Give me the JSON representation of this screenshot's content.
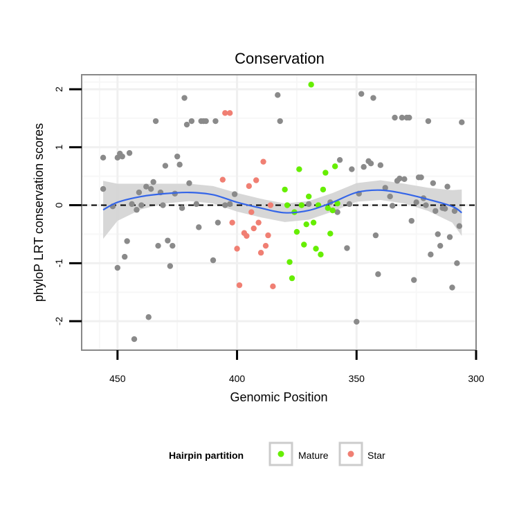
{
  "chart_data": {
    "type": "scatter",
    "title": "Conservation",
    "xlabel": "Genomic Position",
    "ylabel": "phyloP LRT conservation scores",
    "xlim": [
      465,
      300
    ],
    "x_reversed": true,
    "ylim": [
      -2.5,
      2.25
    ],
    "x_ticks": [
      450,
      400,
      350,
      300
    ],
    "y_ticks": [
      2,
      1,
      0,
      -1,
      -2
    ],
    "x_tick_labels": [
      "450",
      "400",
      "350",
      "300"
    ],
    "y_tick_labels": [
      "2",
      "1",
      "0",
      "-1",
      "-2"
    ],
    "grid": true,
    "reference_line": {
      "y": 0,
      "style": "dashed",
      "color": "#000000"
    },
    "legend": {
      "title": "Hairpin partition",
      "position": "bottom",
      "entries": [
        {
          "label": "Mature",
          "color": "#66ee00"
        },
        {
          "label": "Star",
          "color": "#f07f73"
        }
      ]
    },
    "colors": {
      "other": "#8a8a8a",
      "Mature": "#66ee00",
      "Star": "#f07f73",
      "smooth": "#3465e8",
      "band": "#d3d3d3"
    },
    "series": [
      {
        "group": "other",
        "points": [
          [
            456,
            0.82
          ],
          [
            456,
            0.28
          ],
          [
            452,
            -0.02
          ],
          [
            450,
            0.82
          ],
          [
            450,
            -1.08
          ],
          [
            449,
            0.89
          ],
          [
            448,
            0.84
          ],
          [
            447,
            -0.89
          ],
          [
            446,
            -0.62
          ],
          [
            445,
            0.9
          ],
          [
            444,
            0.02
          ],
          [
            443,
            -2.31
          ],
          [
            442,
            -0.08
          ],
          [
            441,
            0.22
          ],
          [
            440,
            0.0
          ],
          [
            438,
            0.32
          ],
          [
            437,
            -1.93
          ],
          [
            436,
            0.28
          ],
          [
            435,
            0.4
          ],
          [
            434,
            1.45
          ],
          [
            433,
            -0.7
          ],
          [
            432,
            0.22
          ],
          [
            431,
            0.0
          ],
          [
            430,
            0.68
          ],
          [
            429,
            -0.61
          ],
          [
            428,
            -1.05
          ],
          [
            427,
            -0.7
          ],
          [
            426,
            0.2
          ],
          [
            425,
            0.84
          ],
          [
            424,
            0.7
          ],
          [
            423,
            -0.05
          ],
          [
            422,
            1.85
          ],
          [
            421,
            1.39
          ],
          [
            420,
            0.38
          ],
          [
            419,
            1.45
          ],
          [
            417,
            0.02
          ],
          [
            416,
            -0.38
          ],
          [
            415,
            1.45
          ],
          [
            414,
            1.45
          ],
          [
            413,
            1.45
          ],
          [
            410,
            -0.95
          ],
          [
            409,
            1.45
          ],
          [
            408,
            -0.3
          ],
          [
            405,
            0.0
          ],
          [
            403,
            0.02
          ],
          [
            401,
            0.19
          ],
          [
            383,
            1.9
          ],
          [
            382,
            1.45
          ],
          [
            370,
            0.02
          ],
          [
            361,
            0.05
          ],
          [
            358,
            -0.12
          ],
          [
            357,
            0.78
          ],
          [
            354,
            -0.74
          ],
          [
            353,
            0.02
          ],
          [
            352,
            0.62
          ],
          [
            350,
            -2.01
          ],
          [
            349,
            0.2
          ],
          [
            348,
            1.92
          ],
          [
            347,
            0.66
          ],
          [
            345,
            0.76
          ],
          [
            344,
            0.72
          ],
          [
            343,
            1.85
          ],
          [
            342,
            -0.52
          ],
          [
            341,
            -1.19
          ],
          [
            340,
            0.69
          ],
          [
            338,
            0.3
          ],
          [
            336,
            0.15
          ],
          [
            335,
            -0.01
          ],
          [
            334,
            1.51
          ],
          [
            333,
            0.42
          ],
          [
            332,
            0.46
          ],
          [
            331,
            1.51
          ],
          [
            330,
            0.45
          ],
          [
            329,
            1.51
          ],
          [
            328,
            1.51
          ],
          [
            327,
            -0.27
          ],
          [
            326,
            -1.29
          ],
          [
            325,
            0.05
          ],
          [
            324,
            0.48
          ],
          [
            323,
            0.48
          ],
          [
            322,
            0.12
          ],
          [
            321,
            0.0
          ],
          [
            320,
            1.45
          ],
          [
            319,
            -0.85
          ],
          [
            318,
            0.38
          ],
          [
            317,
            -0.1
          ],
          [
            316,
            -0.5
          ],
          [
            315,
            -0.7
          ],
          [
            314,
            -0.05
          ],
          [
            313,
            -0.06
          ],
          [
            312,
            0.32
          ],
          [
            311,
            -0.55
          ],
          [
            310,
            -1.42
          ],
          [
            309,
            -0.1
          ],
          [
            308,
            -1.0
          ],
          [
            307,
            -0.36
          ],
          [
            306,
            1.43
          ]
        ]
      },
      {
        "group": "Star",
        "points": [
          [
            406,
            0.44
          ],
          [
            405,
            1.59
          ],
          [
            403,
            1.59
          ],
          [
            402,
            -0.3
          ],
          [
            400,
            -0.75
          ],
          [
            399,
            -1.38
          ],
          [
            397,
            -0.48
          ],
          [
            396,
            -0.53
          ],
          [
            395,
            0.33
          ],
          [
            394,
            -0.12
          ],
          [
            393,
            -0.4
          ],
          [
            392,
            0.43
          ],
          [
            391,
            -0.3
          ],
          [
            390,
            -0.82
          ],
          [
            389,
            0.75
          ],
          [
            388,
            -0.7
          ],
          [
            387,
            -0.52
          ],
          [
            386,
            0.0
          ],
          [
            385,
            -1.4
          ]
        ]
      },
      {
        "group": "Mature",
        "points": [
          [
            380,
            0.27
          ],
          [
            379,
            0.0
          ],
          [
            378,
            -0.98
          ],
          [
            377,
            -1.26
          ],
          [
            376,
            -0.12
          ],
          [
            375,
            -0.46
          ],
          [
            374,
            0.62
          ],
          [
            373,
            0.0
          ],
          [
            372,
            -0.68
          ],
          [
            371,
            -0.33
          ],
          [
            370,
            0.15
          ],
          [
            369,
            2.08
          ],
          [
            368,
            -0.3
          ],
          [
            367,
            -0.75
          ],
          [
            366,
            0.0
          ],
          [
            365,
            -0.85
          ],
          [
            364,
            0.27
          ],
          [
            363,
            0.56
          ],
          [
            362,
            -0.05
          ],
          [
            361,
            -0.49
          ],
          [
            360,
            -0.09
          ],
          [
            359,
            0.67
          ],
          [
            358,
            0.03
          ]
        ]
      }
    ],
    "smooth": {
      "x": [
        456,
        450,
        440,
        430,
        420,
        410,
        400,
        390,
        380,
        370,
        360,
        350,
        340,
        330,
        320,
        310,
        306
      ],
      "y": [
        -0.08,
        0.05,
        0.15,
        0.2,
        0.22,
        0.18,
        0.05,
        -0.05,
        -0.13,
        -0.09,
        0.05,
        0.22,
        0.26,
        0.2,
        0.1,
        -0.02,
        -0.13
      ],
      "band_half_width": [
        0.5,
        0.32,
        0.22,
        0.17,
        0.15,
        0.15,
        0.16,
        0.16,
        0.16,
        0.16,
        0.16,
        0.16,
        0.17,
        0.17,
        0.2,
        0.28,
        0.4
      ]
    }
  }
}
